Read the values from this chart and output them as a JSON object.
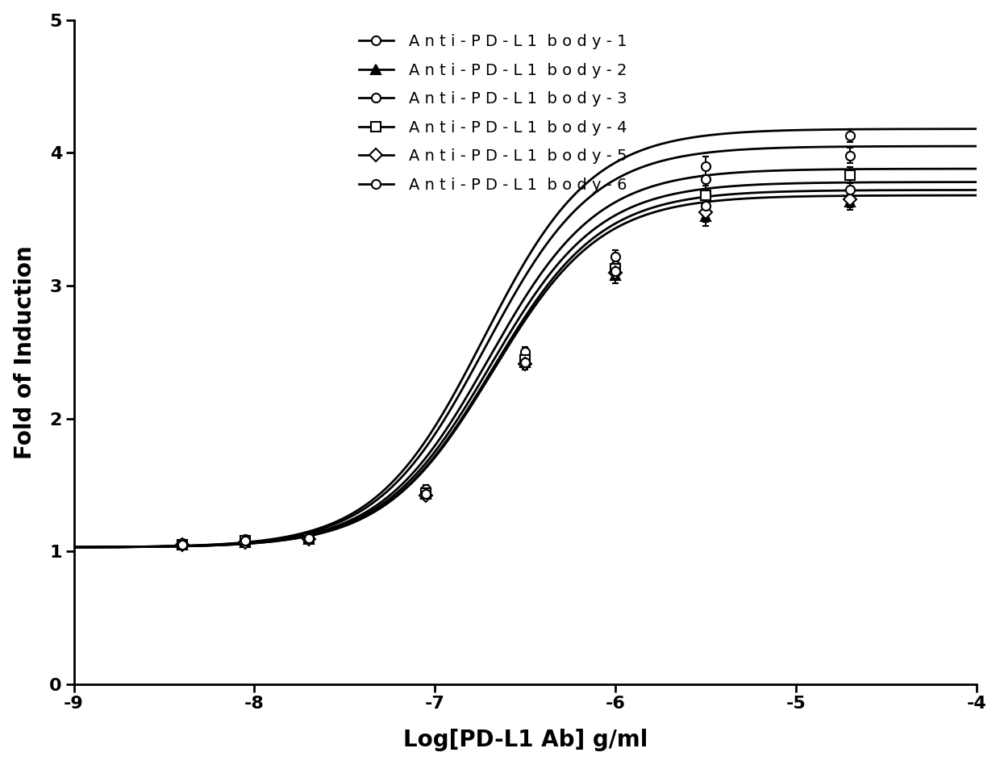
{
  "xlabel": "Log[PD-L1 Ab] g/ml",
  "ylabel": "Fold of Induction",
  "xlim": [
    -9,
    -4
  ],
  "ylim": [
    0,
    5
  ],
  "xticks": [
    -9,
    -8,
    -7,
    -6,
    -5,
    -4
  ],
  "yticks": [
    0,
    1,
    2,
    3,
    4,
    5
  ],
  "series": [
    {
      "label": "Anti-PD-L1 body-1",
      "legend_label": "A n t i - P D - L 1  b o d y - 1",
      "marker": "o",
      "markerfacecolor": "white",
      "bottom": 1.03,
      "top": 4.05,
      "ec50": -6.72,
      "hill": 1.45,
      "color": "#000000",
      "x_data": [
        -8.4,
        -8.05,
        -7.7,
        -7.05,
        -6.5,
        -6.0,
        -5.5,
        -4.7
      ],
      "y_data": [
        1.05,
        1.08,
        1.1,
        1.45,
        2.47,
        3.15,
        3.8,
        3.98
      ],
      "y_err": [
        0.02,
        0.02,
        0.02,
        0.03,
        0.04,
        0.06,
        0.09,
        0.06
      ]
    },
    {
      "label": "Anti-PD-L1 body-2",
      "legend_label": "A n t i - P D - L 1  b o d y - 2",
      "marker": "^",
      "markerfacecolor": "#000000",
      "bottom": 1.03,
      "top": 3.68,
      "ec50": -6.68,
      "hill": 1.45,
      "color": "#000000",
      "x_data": [
        -8.4,
        -8.05,
        -7.7,
        -7.05,
        -6.5,
        -6.0,
        -5.5,
        -4.7
      ],
      "y_data": [
        1.05,
        1.07,
        1.09,
        1.43,
        2.42,
        3.08,
        3.52,
        3.63
      ],
      "y_err": [
        0.02,
        0.02,
        0.02,
        0.03,
        0.04,
        0.06,
        0.07,
        0.06
      ]
    },
    {
      "label": "Anti-PD-L1 body-3",
      "legend_label": "A n t i - P D - L 1  b o d y - 3",
      "marker": "o",
      "markerfacecolor": "white",
      "bottom": 1.03,
      "top": 4.18,
      "ec50": -6.73,
      "hill": 1.45,
      "color": "#000000",
      "x_data": [
        -8.4,
        -8.05,
        -7.7,
        -7.05,
        -6.5,
        -6.0,
        -5.5,
        -4.7
      ],
      "y_data": [
        1.06,
        1.09,
        1.12,
        1.47,
        2.5,
        3.22,
        3.9,
        4.13
      ],
      "y_err": [
        0.02,
        0.02,
        0.02,
        0.03,
        0.04,
        0.05,
        0.07,
        0.05
      ]
    },
    {
      "label": "Anti-PD-L1 body-4",
      "legend_label": "A n t i - P D - L 1  b o d y - 4",
      "marker": "s",
      "markerfacecolor": "white",
      "bottom": 1.03,
      "top": 3.88,
      "ec50": -6.7,
      "hill": 1.45,
      "color": "#000000",
      "x_data": [
        -8.4,
        -8.05,
        -7.7,
        -7.05,
        -6.5,
        -6.0,
        -5.5,
        -4.7
      ],
      "y_data": [
        1.05,
        1.08,
        1.1,
        1.44,
        2.44,
        3.13,
        3.68,
        3.83
      ],
      "y_err": [
        0.02,
        0.02,
        0.02,
        0.03,
        0.04,
        0.06,
        0.07,
        0.06
      ]
    },
    {
      "label": "Anti-PD-L1 body-5",
      "legend_label": "A n t i - P D - L 1  b o d y - 5",
      "marker": "D",
      "markerfacecolor": "white",
      "bottom": 1.03,
      "top": 3.72,
      "ec50": -6.68,
      "hill": 1.45,
      "color": "#000000",
      "x_data": [
        -8.4,
        -8.05,
        -7.7,
        -7.05,
        -6.5,
        -6.0,
        -5.5,
        -4.7
      ],
      "y_data": [
        1.05,
        1.07,
        1.09,
        1.42,
        2.41,
        3.1,
        3.55,
        3.65
      ],
      "y_err": [
        0.02,
        0.02,
        0.02,
        0.03,
        0.04,
        0.06,
        0.07,
        0.06
      ]
    },
    {
      "label": "Anti-PD-L1 body-6",
      "legend_label": "A n t i - P D - L 1  b o d y - 6",
      "marker": "o",
      "markerfacecolor": "white",
      "bottom": 1.03,
      "top": 3.78,
      "ec50": -6.69,
      "hill": 1.45,
      "color": "#000000",
      "x_data": [
        -8.4,
        -8.05,
        -7.7,
        -7.05,
        -6.5,
        -6.0,
        -5.5,
        -4.7
      ],
      "y_data": [
        1.05,
        1.08,
        1.1,
        1.43,
        2.42,
        3.11,
        3.6,
        3.72
      ],
      "y_err": [
        0.02,
        0.02,
        0.02,
        0.03,
        0.04,
        0.06,
        0.07,
        0.06
      ]
    }
  ],
  "background_color": "#ffffff",
  "legend_fontsize": 14,
  "axis_label_fontsize": 20,
  "tick_fontsize": 16,
  "linewidth": 2.0,
  "markersize": 8
}
